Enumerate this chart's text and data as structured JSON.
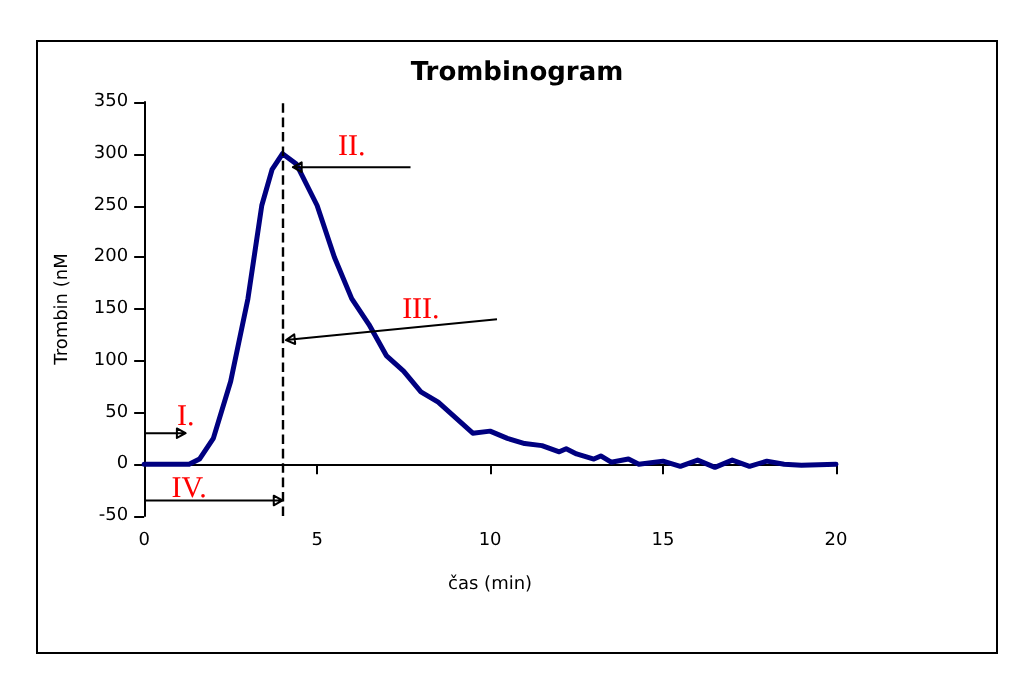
{
  "chart_data": {
    "type": "line",
    "title": "Trombinogram",
    "xlabel": "čas (min)",
    "ylabel": "Trombin (nM",
    "x": [
      0,
      1.3,
      1.6,
      2,
      2.5,
      3,
      3.4,
      3.7,
      4,
      4.4,
      5,
      5.5,
      6,
      6.5,
      7,
      7.5,
      8,
      8.5,
      9,
      9.5,
      10,
      10.5,
      11,
      11.5,
      12,
      12.2,
      12.5,
      13,
      13.2,
      13.5,
      14,
      14.3,
      15,
      15.5,
      16,
      16.5,
      17,
      17.5,
      18,
      18.5,
      19,
      20
    ],
    "series": [
      {
        "color": "#000080",
        "values": [
          0,
          0,
          5,
          25,
          80,
          160,
          250,
          285,
          300,
          290,
          250,
          200,
          160,
          135,
          105,
          90,
          70,
          60,
          45,
          30,
          32,
          25,
          20,
          18,
          12,
          15,
          10,
          5,
          8,
          2,
          5,
          0,
          3,
          -2,
          4,
          -3,
          4,
          -2,
          3,
          0,
          -1,
          0
        ]
      }
    ],
    "xlim": [
      0,
      20
    ],
    "xticks": [
      0,
      5,
      10,
      15,
      20
    ],
    "ylim": [
      -50,
      350
    ],
    "yticks": [
      -50,
      0,
      50,
      100,
      150,
      200,
      250,
      300,
      350
    ],
    "marker": "none",
    "line_style": "solid",
    "ref_lines": [
      {
        "axis": "x",
        "value": 4,
        "line_style": "dashed",
        "color": "#000000"
      }
    ],
    "annotations": [
      "I.",
      "II.",
      "III.",
      {
        "text": "IV.",
        "x": 4,
        "y": -35
      }
    ]
  }
}
